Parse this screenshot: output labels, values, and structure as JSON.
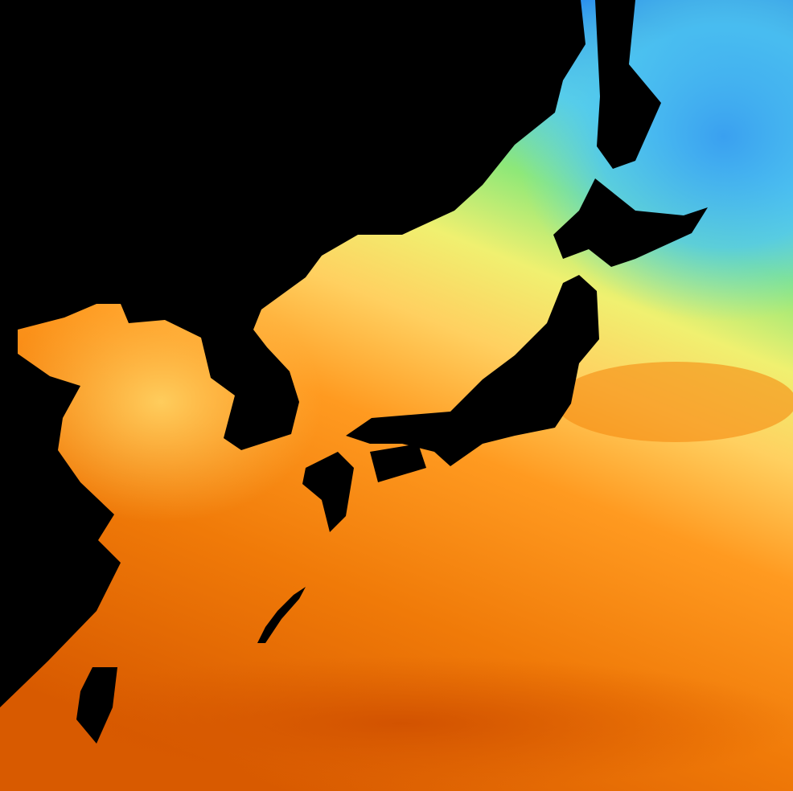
{
  "map": {
    "kind": "sea-surface-temperature",
    "land_color": "#000000",
    "colorscale": [
      "#2a8ff0",
      "#45b8f5",
      "#60e0e0",
      "#8ee878",
      "#d8f070",
      "#ffe070",
      "#ffc050",
      "#ff9a20",
      "#f07a08",
      "#d85a00"
    ]
  }
}
